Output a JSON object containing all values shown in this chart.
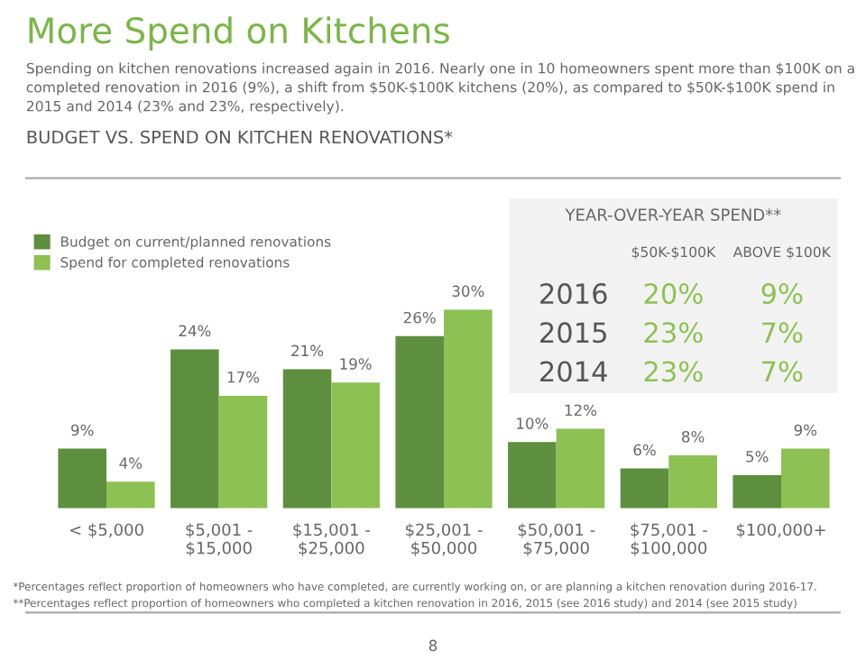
{
  "chart_data": [
    {
      "type": "bar",
      "title": "More Spend on Kitchens",
      "subtitle": "Spending on kitchen renovations increased again in 2016. Nearly one in 10 homeowners spent more than $100K on a completed renovation in 2016 (9%), a shift from $50K-$100K kitchens (20%), as compared to $50K-$100K spend in 2015 and 2014 (23% and 23%, respectively).",
      "categories": [
        "< $5,000",
        "$5,001 -\n$15,000",
        "$15,001 -\n$25,000",
        "$25,001 -\n$50,000",
        "$50,001 -\n$75,000",
        "$75,001 -\n$100,000",
        "$100,000+"
      ],
      "series": [
        {
          "name": "Budget on current/planned renovations",
          "color": "#5e8f3e",
          "values": [
            9,
            24,
            21,
            26,
            10,
            6,
            5
          ],
          "value_labels": [
            "9%",
            "24%",
            "21%",
            "26%",
            "10%",
            "6%",
            "5%"
          ]
        },
        {
          "name": "Spend for completed renovations",
          "color": "#8dc153",
          "values": [
            4,
            17,
            19,
            30,
            12,
            8,
            9
          ],
          "value_labels": [
            "4%",
            "17%",
            "19%",
            "30%",
            "12%",
            "8%",
            "9%"
          ]
        }
      ],
      "legend": "top left",
      "grid": false,
      "annotations": [
        "BUDGET VS. SPEND ON KITCHEN RENOVATIONS*",
        "*Percentages reflect proportion of homeowners who have completed, are currently working on, or are planning a kitchen renovation during 2016-17.",
        "**Percentages reflect proportion of homeowners who completed a kitchen renovation in 2016, 2015 (see 2016 study) and 2014 (see 2015 study)",
        "8"
      ]
    },
    {
      "type": "other",
      "title": "YEAR-OVER-YEAR SPEND**",
      "categories": [
        "$50K-$100K",
        "ABOVE $100K"
      ],
      "y_categories": [
        "2016",
        "2015",
        "2014"
      ],
      "cell_labels": [
        [
          "20%",
          "9%"
        ],
        [
          "23%",
          "7%"
        ],
        [
          "23%",
          "7%"
        ]
      ]
    }
  ]
}
